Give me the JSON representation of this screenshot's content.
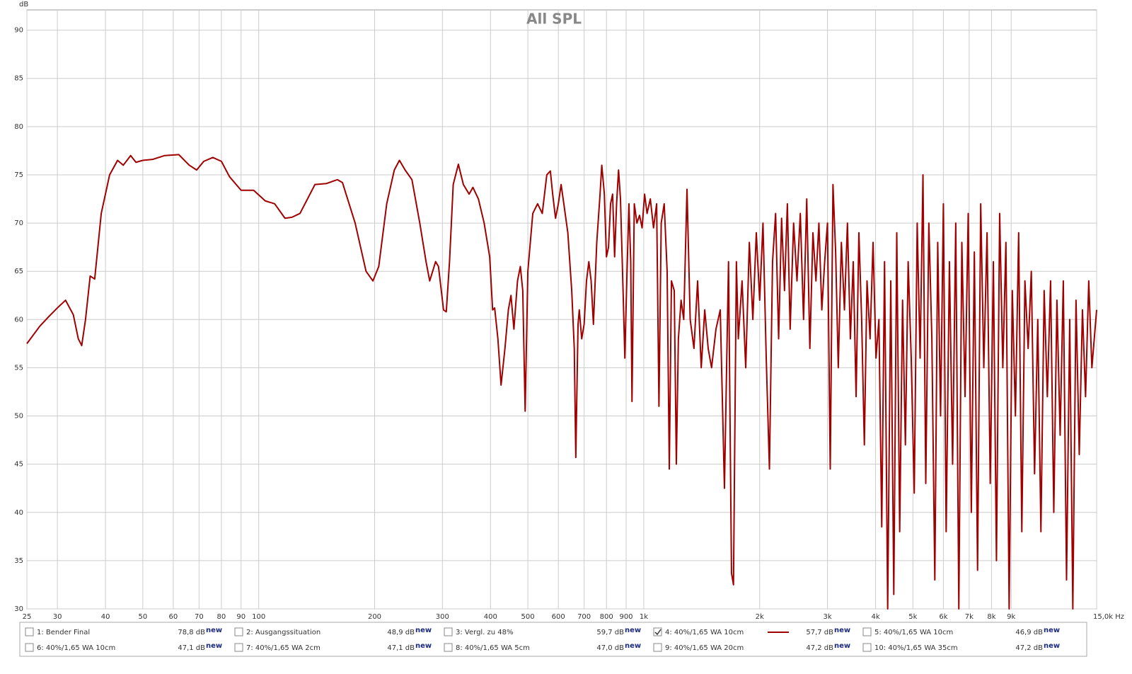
{
  "chart_data": {
    "type": "line",
    "title": "All SPL",
    "y_label": "dB",
    "log_x": true,
    "grid": true,
    "color": "#a00000",
    "xlim": [
      25,
      15000
    ],
    "ylim": [
      30,
      92.1
    ],
    "xticks": [
      25,
      30,
      40,
      50,
      60,
      70,
      80,
      90,
      100,
      200,
      300,
      400,
      500,
      600,
      700,
      800,
      900,
      {
        "value": 1000,
        "label": "1k"
      },
      {
        "value": 2000,
        "label": "2k"
      },
      {
        "value": 3000,
        "label": "3k"
      },
      {
        "value": 4000,
        "label": "4k"
      },
      {
        "value": 5000,
        "label": "5k"
      },
      {
        "value": 6000,
        "label": "6k"
      },
      {
        "value": 7000,
        "label": "7k"
      },
      {
        "value": 8000,
        "label": "8k"
      },
      {
        "value": 9000,
        "label": "9k"
      },
      {
        "value": 15000,
        "label": "15,0k Hz"
      }
    ],
    "yticks": [
      30,
      35,
      40,
      45,
      50,
      55,
      60,
      65,
      70,
      75,
      80,
      85,
      90
    ],
    "x": [
      25,
      27,
      28.5,
      30,
      31.5,
      33,
      34,
      34.7,
      35.5,
      36.5,
      37.5,
      39,
      41,
      43,
      44.5,
      46.5,
      48,
      50,
      53,
      57,
      62,
      66,
      69,
      72,
      76,
      80,
      84,
      90,
      97,
      104,
      110,
      117,
      122,
      128,
      140,
      150,
      160,
      165,
      178,
      190,
      198,
      205,
      215,
      225,
      232,
      240,
      250,
      262,
      272,
      278,
      283,
      288,
      293,
      302,
      307,
      313,
      320,
      330,
      340,
      352,
      360,
      372,
      385,
      398,
      405,
      410,
      418,
      426,
      436,
      445,
      452,
      460,
      470,
      478,
      485,
      492,
      500,
      515,
      530,
      545,
      560,
      572,
      580,
      590,
      600,
      610,
      620,
      635,
      650,
      660,
      666,
      675,
      680,
      690,
      700,
      710,
      720,
      730,
      740,
      755,
      770,
      778,
      790,
      800,
      810,
      820,
      830,
      840,
      850,
      860,
      870,
      885,
      893,
      902,
      915,
      925,
      932,
      945,
      960,
      975,
      990,
      1005,
      1020,
      1040,
      1060,
      1080,
      1095,
      1110,
      1130,
      1150,
      1165,
      1180,
      1200,
      1215,
      1230,
      1250,
      1270,
      1295,
      1320,
      1350,
      1380,
      1410,
      1440,
      1470,
      1500,
      1540,
      1580,
      1620,
      1660,
      1690,
      1710,
      1740,
      1760,
      1800,
      1840,
      1880,
      1920,
      1960,
      2000,
      2040,
      2080,
      2120,
      2160,
      2200,
      2240,
      2280,
      2320,
      2360,
      2400,
      2450,
      2500,
      2550,
      2600,
      2650,
      2700,
      2750,
      2800,
      2850,
      2900,
      2950,
      3000,
      3050,
      3100,
      3150,
      3200,
      3260,
      3320,
      3380,
      3440,
      3500,
      3560,
      3620,
      3680,
      3740,
      3800,
      3870,
      3940,
      4010,
      4080,
      4150,
      4220,
      4300,
      4380,
      4460,
      4540,
      4620,
      4700,
      4780,
      4860,
      4950,
      5040,
      5130,
      5220,
      5310,
      5400,
      5500,
      5600,
      5700,
      5800,
      5900,
      6000,
      6100,
      6220,
      6340,
      6460,
      6580,
      6700,
      6830,
      6960,
      7090,
      7220,
      7360,
      7500,
      7640,
      7790,
      7940,
      8090,
      8240,
      8400,
      8560,
      8720,
      8890,
      9060,
      9230,
      9410,
      9590,
      9770,
      9960,
      10150,
      10350,
      10550,
      10750,
      10960,
      11170,
      11390,
      11610,
      11830,
      12060,
      12290,
      12530,
      12770,
      13010,
      13260,
      13520,
      13780,
      14040,
      14310,
      14580,
      15000
    ],
    "values": [
      57.5,
      59.3,
      60.3,
      61.2,
      62,
      60.5,
      58,
      57.3,
      60,
      64.5,
      64.2,
      71,
      75,
      76.5,
      76,
      77,
      76.3,
      76.5,
      76.6,
      77,
      77.1,
      76,
      75.5,
      76.4,
      76.8,
      76.4,
      74.8,
      73.4,
      73.4,
      72.3,
      72,
      70.5,
      70.6,
      71,
      74,
      74.1,
      74.5,
      74.2,
      70,
      65,
      64,
      65.5,
      72,
      75.5,
      76.5,
      75.5,
      74.5,
      70,
      66,
      64,
      65,
      66,
      65.5,
      61,
      60.8,
      66,
      74,
      76.1,
      74,
      73,
      73.7,
      72.5,
      70,
      66.5,
      61,
      61.2,
      58,
      53.2,
      57,
      61,
      62.5,
      59,
      64,
      65.5,
      63,
      50.5,
      65,
      71,
      72,
      71,
      75,
      75.4,
      73,
      70.5,
      72,
      74,
      72,
      69,
      63,
      57,
      45.7,
      59.5,
      61,
      58,
      59.5,
      64,
      66,
      64,
      59.5,
      68,
      73,
      76,
      73,
      66.5,
      67.5,
      72,
      73,
      66.5,
      72,
      75.5,
      72.5,
      62,
      56,
      63,
      72,
      66,
      51.5,
      72,
      70,
      70.8,
      69.5,
      73,
      71,
      72.5,
      69.5,
      72,
      51,
      70,
      72,
      65,
      44.5,
      64,
      63,
      45,
      58,
      62,
      60,
      73.5,
      60,
      57,
      64,
      55,
      61,
      57,
      55,
      59,
      61,
      42.5,
      66,
      33.7,
      32.5,
      66,
      58,
      64,
      55,
      68,
      60,
      69,
      62,
      70,
      56,
      44.5,
      66,
      71,
      58,
      70.5,
      63,
      72,
      59,
      70,
      64,
      71,
      60,
      72.5,
      57,
      69,
      64,
      70,
      61,
      66,
      70,
      44.5,
      74,
      67,
      55,
      68,
      61,
      70,
      58,
      66,
      52,
      69,
      60,
      47,
      64,
      58,
      68,
      56,
      60,
      38.5,
      66,
      30,
      64,
      31.5,
      69,
      38,
      62,
      47,
      66,
      56,
      42,
      70,
      56,
      75,
      43,
      70,
      58,
      33,
      68,
      50,
      72,
      38,
      66,
      45,
      70,
      30,
      68,
      52,
      71,
      40,
      67,
      34,
      72,
      55,
      69,
      43,
      66,
      35,
      71,
      55,
      68,
      30,
      63,
      50,
      69,
      38,
      64,
      57,
      65,
      44,
      60,
      38,
      63,
      52,
      64,
      40,
      62,
      48,
      64,
      33,
      60,
      30,
      62,
      46,
      61,
      52,
      64,
      55,
      61
    ],
    "badge": "new",
    "traces": [
      {
        "label": "1: Bender Final",
        "level": "78,8 dB",
        "color": "#1b2a80",
        "checked": false
      },
      {
        "label": "2: Ausgangssituation",
        "level": "48,9 dB",
        "color": "#1b2a6a",
        "checked": false
      },
      {
        "label": "3: Vergl. zu 48%",
        "level": "59,7 dB",
        "color": "#9b3fa0",
        "checked": false
      },
      {
        "label": "4: 40%/1,65 WA 10cm",
        "level": "57,7 dB",
        "color": "#a00000",
        "checked": true
      },
      {
        "label": "5: 40%/1,65 WA 10cm",
        "level": "46,9 dB",
        "color": "#2a8a9a",
        "checked": false
      },
      {
        "label": "6: 40%/1,65 WA 10cm",
        "level": "47,1 dB",
        "color": "#1a6e7a",
        "checked": false
      },
      {
        "label": "7: 40%/1,65 WA 2cm",
        "level": "47,1 dB",
        "color": "#b08a00",
        "checked": false
      },
      {
        "label": "8: 40%/1,65 WA 5cm",
        "level": "47,0 dB",
        "color": "#7a3a9a",
        "checked": false
      },
      {
        "label": "9: 40%/1,65 WA 20cm",
        "level": "47,2 dB",
        "color": "#a08a10",
        "checked": false
      },
      {
        "label": "10: 40%/1,65 WA 35cm",
        "level": "47,2 dB",
        "color": "#1a8a6a",
        "checked": false
      }
    ]
  }
}
